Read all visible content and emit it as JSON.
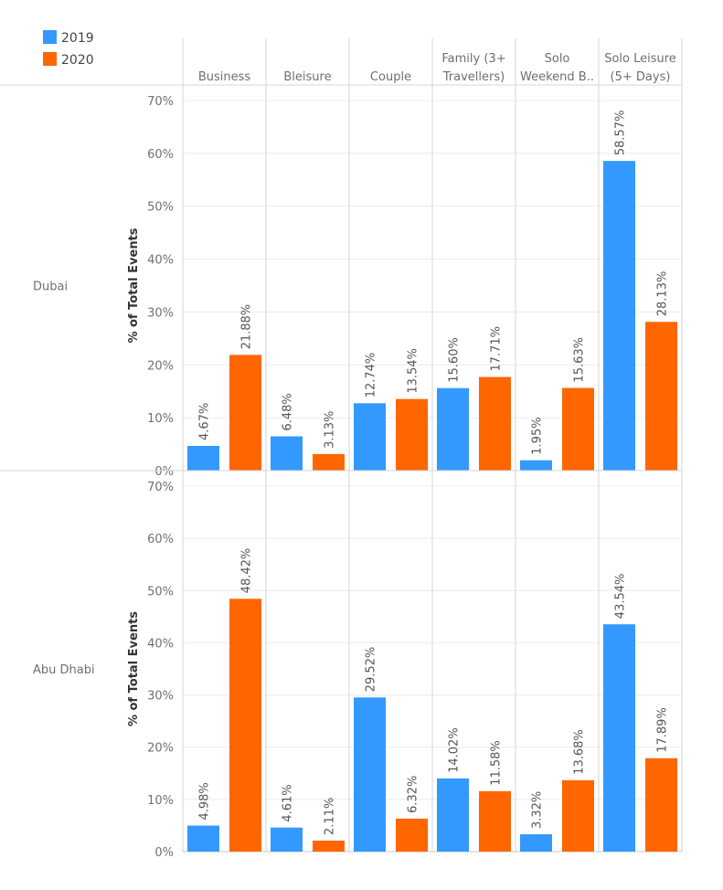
{
  "chart_data": {
    "type": "bar",
    "y_axis_label": "% of Total Events",
    "ylim": [
      0,
      70
    ],
    "yticks": [
      "0%",
      "10%",
      "20%",
      "30%",
      "40%",
      "50%",
      "60%",
      "70%"
    ],
    "y_tick_values": [
      0,
      10,
      20,
      30,
      40,
      50,
      60,
      70
    ],
    "grid": true,
    "legend_position": "top-left",
    "categories": [
      [
        "Business"
      ],
      [
        "Bleisure"
      ],
      [
        "Couple"
      ],
      [
        "Family (3+",
        "Travellers)"
      ],
      [
        "Solo",
        "Weekend B.."
      ],
      [
        "Solo Leisure",
        "(5+ Days)"
      ]
    ],
    "series": [
      {
        "name": "2019",
        "color": "#3399ff"
      },
      {
        "name": "2020",
        "color": "#ff6600"
      }
    ],
    "panels": [
      {
        "row_label": "Dubai",
        "values": {
          "2019": [
            4.67,
            6.48,
            12.74,
            15.6,
            1.95,
            58.57
          ],
          "2020": [
            21.88,
            3.13,
            13.54,
            17.71,
            15.63,
            28.13
          ]
        },
        "labels": {
          "2019": [
            "4.67%",
            "6.48%",
            "12.74%",
            "15.60%",
            "1.95%",
            "58.57%"
          ],
          "2020": [
            "21.88%",
            "3.13%",
            "13.54%",
            "17.71%",
            "15.63%",
            "28.13%"
          ]
        }
      },
      {
        "row_label": "Abu Dhabi",
        "values": {
          "2019": [
            4.98,
            4.61,
            29.52,
            14.02,
            3.32,
            43.54
          ],
          "2020": [
            48.42,
            2.11,
            6.32,
            11.58,
            13.68,
            17.89
          ]
        },
        "labels": {
          "2019": [
            "4.98%",
            "4.61%",
            "29.52%",
            "14.02%",
            "3.32%",
            "43.54%"
          ],
          "2020": [
            "48.42%",
            "2.11%",
            "6.32%",
            "11.58%",
            "13.68%",
            "17.89%"
          ]
        }
      }
    ]
  }
}
